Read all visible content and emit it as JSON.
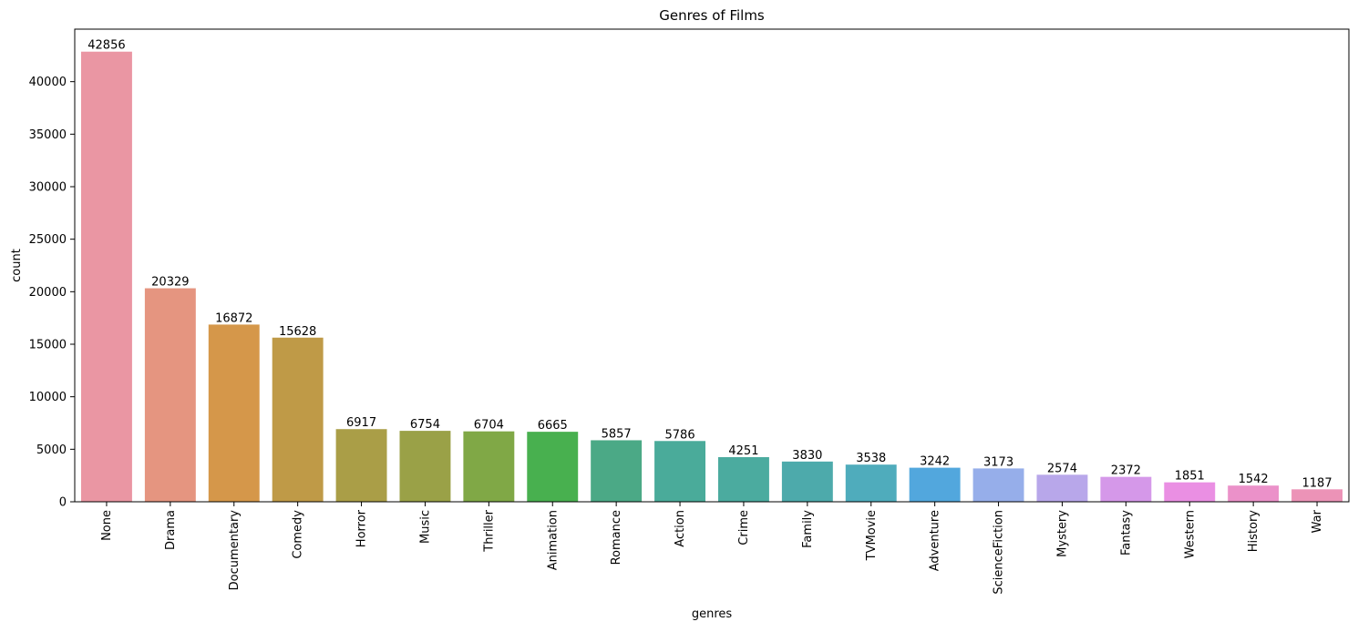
{
  "chart_data": {
    "type": "bar",
    "title": "Genres of Films",
    "xlabel": "genres",
    "ylabel": "count",
    "categories": [
      "None",
      "Drama",
      "Documentary",
      "Comedy",
      "Horror",
      "Music",
      "Thriller",
      "Animation",
      "Romance",
      "Action",
      "Crime",
      "Family",
      "TVMovie",
      "Adventure",
      "ScienceFiction",
      "Mystery",
      "Fantasy",
      "Western",
      "History",
      "War"
    ],
    "values": [
      42856,
      20329,
      16872,
      15628,
      6917,
      6754,
      6704,
      6665,
      5857,
      5786,
      4251,
      3830,
      3538,
      3242,
      3173,
      2574,
      2372,
      1851,
      1542,
      1187
    ],
    "colors": [
      "#ea96a3",
      "#e59580",
      "#d5974a",
      "#bf9a47",
      "#aa9e47",
      "#9aa147",
      "#80a846",
      "#48b04f",
      "#4ba986",
      "#4aab9a",
      "#4bab9f",
      "#4daaab",
      "#4facbc",
      "#52a7dd",
      "#96aeea",
      "#b8a7ea",
      "#d598e9",
      "#ea8fe3",
      "#eb91c9",
      "#ec93b7"
    ],
    "yticks": [
      0,
      5000,
      10000,
      15000,
      20000,
      25000,
      30000,
      35000,
      40000
    ],
    "ylim": [
      0,
      45000
    ],
    "grid": false,
    "legend": "none",
    "data_labels": true
  }
}
